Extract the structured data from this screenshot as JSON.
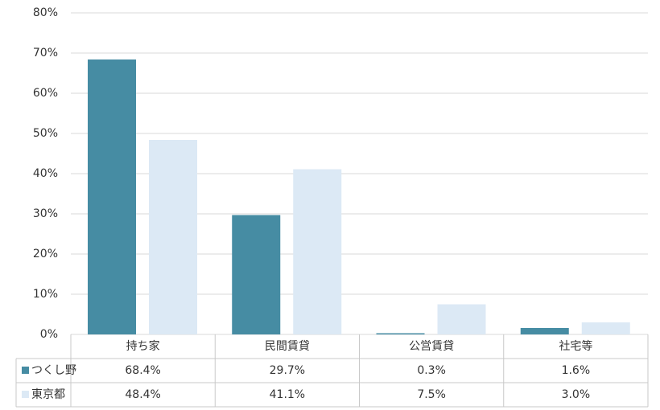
{
  "chart_data": {
    "type": "bar",
    "categories": [
      "持ち家",
      "民間賃貸",
      "公営賃貸",
      "社宅等"
    ],
    "series": [
      {
        "name": "つくし野",
        "color": "#468ca3",
        "values": [
          68.4,
          29.7,
          0.3,
          1.6
        ],
        "value_labels": [
          "68.4%",
          "29.7%",
          "0.3%",
          "1.6%"
        ]
      },
      {
        "name": "東京都",
        "color": "#dce9f5",
        "values": [
          48.4,
          41.1,
          7.5,
          3.0
        ],
        "value_labels": [
          "48.4%",
          "41.1%",
          "7.5%",
          "3.0%"
        ]
      }
    ],
    "ylim": [
      0,
      80
    ],
    "yticks": [
      {
        "value": 0,
        "label": "0%"
      },
      {
        "value": 10,
        "label": "10%"
      },
      {
        "value": 20,
        "label": "20%"
      },
      {
        "value": 30,
        "label": "30%"
      },
      {
        "value": 40,
        "label": "40%"
      },
      {
        "value": 50,
        "label": "50%"
      },
      {
        "value": 60,
        "label": "60%"
      },
      {
        "value": 70,
        "label": "70%"
      },
      {
        "value": 80,
        "label": "80%"
      }
    ],
    "grid": true
  }
}
